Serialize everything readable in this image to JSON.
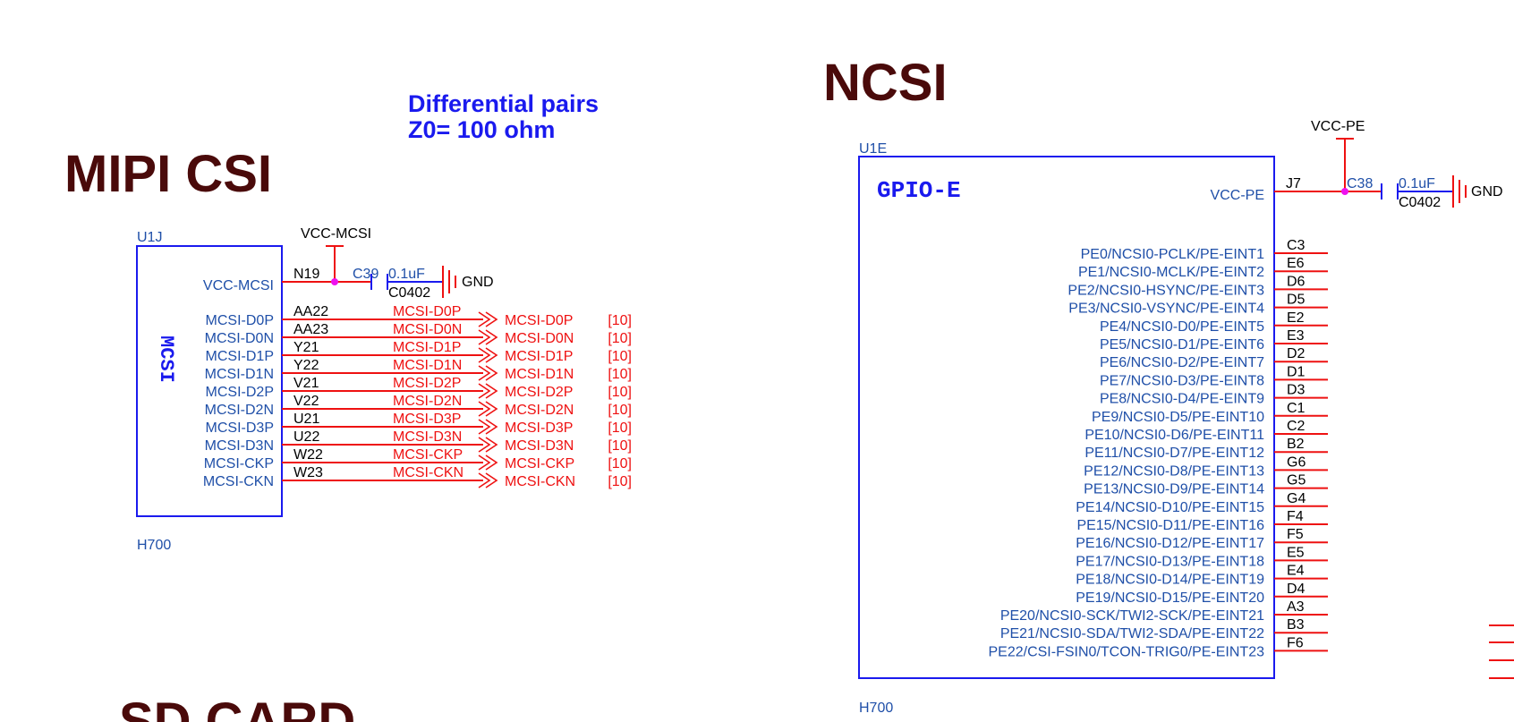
{
  "titles": {
    "mipi": "MIPI CSI",
    "ncsi": "NCSI",
    "sd": "SD CARD"
  },
  "note": {
    "line1": "Differential pairs",
    "line2": "Z0= 100 ohm"
  },
  "mcsi": {
    "ref": "U1J",
    "name": "MCSI",
    "part": "H700",
    "vcc_net": "VCC-MCSI",
    "vcc_pin_name": "VCC-MCSI",
    "vcc_pin_num": "N19",
    "cap_ref": "C39",
    "cap_value": "0.1uF",
    "cap_pkg": "C0402",
    "gnd": "GND",
    "signals": [
      {
        "pin": "MCSI-D0P",
        "num": "AA22",
        "net": "MCSI-D0P",
        "port": "MCSI-D0P",
        "page": "[10]"
      },
      {
        "pin": "MCSI-D0N",
        "num": "AA23",
        "net": "MCSI-D0N",
        "port": "MCSI-D0N",
        "page": "[10]"
      },
      {
        "pin": "MCSI-D1P",
        "num": "Y21",
        "net": "MCSI-D1P",
        "port": "MCSI-D1P",
        "page": "[10]"
      },
      {
        "pin": "MCSI-D1N",
        "num": "Y22",
        "net": "MCSI-D1N",
        "port": "MCSI-D1N",
        "page": "[10]"
      },
      {
        "pin": "MCSI-D2P",
        "num": "V21",
        "net": "MCSI-D2P",
        "port": "MCSI-D2P",
        "page": "[10]"
      },
      {
        "pin": "MCSI-D2N",
        "num": "V22",
        "net": "MCSI-D2N",
        "port": "MCSI-D2N",
        "page": "[10]"
      },
      {
        "pin": "MCSI-D3P",
        "num": "U21",
        "net": "MCSI-D3P",
        "port": "MCSI-D3P",
        "page": "[10]"
      },
      {
        "pin": "MCSI-D3N",
        "num": "U22",
        "net": "MCSI-D3N",
        "port": "MCSI-D3N",
        "page": "[10]"
      },
      {
        "pin": "MCSI-CKP",
        "num": "W22",
        "net": "MCSI-CKP",
        "port": "MCSI-CKP",
        "page": "[10]"
      },
      {
        "pin": "MCSI-CKN",
        "num": "W23",
        "net": "MCSI-CKN",
        "port": "MCSI-CKN",
        "page": "[10]"
      }
    ]
  },
  "gpioe": {
    "ref": "U1E",
    "name": "GPIO-E",
    "part": "H700",
    "vcc_net": "VCC-PE",
    "vcc_pin_name": "VCC-PE",
    "vcc_pin_num": "J7",
    "cap_ref": "C38",
    "cap_value": "0.1uF",
    "cap_pkg": "C0402",
    "gnd": "GND",
    "pins": [
      {
        "name": "PE0/NCSI0-PCLK/PE-EINT1",
        "num": "C3"
      },
      {
        "name": "PE1/NCSI0-MCLK/PE-EINT2",
        "num": "E6"
      },
      {
        "name": "PE2/NCSI0-HSYNC/PE-EINT3",
        "num": "D6"
      },
      {
        "name": "PE3/NCSI0-VSYNC/PE-EINT4",
        "num": "D5"
      },
      {
        "name": "PE4/NCSI0-D0/PE-EINT5",
        "num": "E2"
      },
      {
        "name": "PE5/NCSI0-D1/PE-EINT6",
        "num": "E3"
      },
      {
        "name": "PE6/NCSI0-D2/PE-EINT7",
        "num": "D2"
      },
      {
        "name": "PE7/NCSI0-D3/PE-EINT8",
        "num": "D1"
      },
      {
        "name": "PE8/NCSI0-D4/PE-EINT9",
        "num": "D3"
      },
      {
        "name": "PE9/NCSI0-D5/PE-EINT10",
        "num": "C1"
      },
      {
        "name": "PE10/NCSI0-D6/PE-EINT11",
        "num": "C2"
      },
      {
        "name": "PE11/NCSI0-D7/PE-EINT12",
        "num": "B2"
      },
      {
        "name": "PE12/NCSI0-D8/PE-EINT13",
        "num": "G6"
      },
      {
        "name": "PE13/NCSI0-D9/PE-EINT14",
        "num": "G5"
      },
      {
        "name": "PE14/NCSI0-D10/PE-EINT15",
        "num": "G4"
      },
      {
        "name": "PE15/NCSI0-D11/PE-EINT16",
        "num": "F4"
      },
      {
        "name": "PE16/NCSI0-D12/PE-EINT17",
        "num": "F5"
      },
      {
        "name": "PE17/NCSI0-D13/PE-EINT18",
        "num": "E5"
      },
      {
        "name": "PE18/NCSI0-D14/PE-EINT19",
        "num": "E4"
      },
      {
        "name": "PE19/NCSI0-D15/PE-EINT20",
        "num": "D4"
      },
      {
        "name": "PE20/NCSI0-SCK/TWI2-SCK/PE-EINT21",
        "num": "A3"
      },
      {
        "name": "PE21/NCSI0-SDA/TWI2-SDA/PE-EINT22",
        "num": "B3"
      },
      {
        "name": "PE22/CSI-FSIN0/TCON-TRIG0/PE-EINT23",
        "num": "F6"
      }
    ]
  },
  "colors": {
    "symbol_outline": "#1a1aee",
    "pin_text": "#1f4fa8",
    "wire": "#ee1111",
    "title": "#4a0a0a",
    "junction": "#ee11ee"
  }
}
